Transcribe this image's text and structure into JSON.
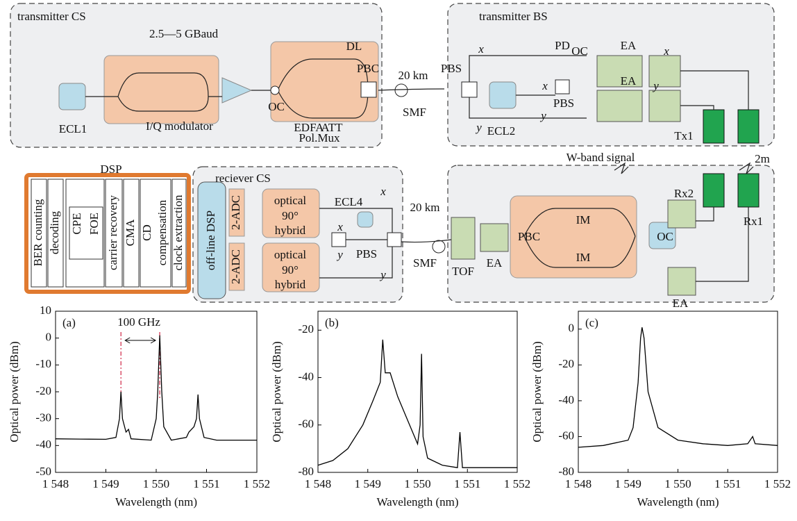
{
  "diagram": {
    "labels": [
      "transmitter CS",
      "2.5—5 GBaud",
      "ECL1",
      "I/Q modulator",
      "EDFA",
      "OC",
      "DL",
      "ATT",
      "PBC",
      "Pol.Mux",
      "20 km",
      "SMF",
      "PBS",
      "transmitter BS",
      "x",
      "y",
      "ECL2",
      "x",
      "PBS",
      "y",
      "OC",
      "PD",
      "EA",
      "EA",
      "x",
      "y",
      "Tx1",
      "W-band signal",
      "2m",
      "DSP",
      "BER counting",
      "decoding",
      "CPE",
      "FOE",
      "carrier recovery",
      "CMA",
      "CD",
      "compensation",
      "clock extraction",
      "reciever CS",
      "off-line DSP",
      "2-ADC",
      "2-ADC",
      "optical",
      "90°",
      "hybrid",
      "optical",
      "90°",
      "hybrid",
      "ECL4",
      "x",
      "x",
      "y",
      "PBS",
      "y",
      "20 km",
      "SMF",
      "TOF",
      "EA",
      "PBC",
      "IM",
      "IM",
      "OC",
      "Rx2",
      "Rx1",
      "EA"
    ]
  },
  "chart_data": [
    {
      "type": "line",
      "title": "(a)",
      "annotation": "100 GHz",
      "x_label": "Wavelength (nm)",
      "y_label": "Optical power (dBm)",
      "color": "#000000",
      "markers": {
        "x": [
          1549.3,
          1550.07
        ],
        "color": "#d9506a"
      },
      "x": [
        1548,
        1548.5,
        1549.0,
        1549.2,
        1549.27,
        1549.3,
        1549.33,
        1549.4,
        1549.45,
        1549.5,
        1549.9,
        1550.0,
        1550.03,
        1550.07,
        1550.11,
        1550.15,
        1550.3,
        1550.6,
        1550.65,
        1550.75,
        1550.8,
        1550.83,
        1550.86,
        1550.95,
        1551.2,
        1551.6,
        1552
      ],
      "values": [
        -37.5,
        -37.6,
        -37.7,
        -37,
        -30,
        -20,
        -30,
        -35,
        -34,
        -37.5,
        -38,
        -30,
        -20,
        1,
        -20,
        -33,
        -38,
        -37,
        -35,
        -33,
        -30,
        -21,
        -30,
        -37,
        -38,
        -38,
        -38
      ],
      "xlim": [
        1548,
        1552
      ],
      "xticks": [
        {
          "value": 1548,
          "label": "1 548"
        },
        {
          "value": 1549,
          "label": "1 549"
        },
        {
          "value": 1550,
          "label": "1 550"
        },
        {
          "value": 1551,
          "label": "1 551"
        },
        {
          "value": 1552,
          "label": "1 552"
        }
      ],
      "ylim": [
        -50,
        10
      ],
      "yticks": [
        -50,
        -40,
        -30,
        -20,
        -10,
        0,
        10
      ]
    },
    {
      "type": "line",
      "title": "(b)",
      "x_label": "Wavelength (nm)",
      "y_label": "Optical power (dBm)",
      "color": "#000000",
      "x": [
        1548,
        1548.3,
        1548.6,
        1548.9,
        1549.1,
        1549.25,
        1549.3,
        1549.35,
        1549.45,
        1549.6,
        1549.8,
        1550.0,
        1550.05,
        1550.08,
        1550.11,
        1550.2,
        1550.5,
        1550.8,
        1550.85,
        1550.9,
        1551.3,
        1552
      ],
      "values": [
        -77,
        -75,
        -70,
        -60,
        -50,
        -42,
        -24,
        -38,
        -38,
        -48,
        -58,
        -68,
        -60,
        -30,
        -65,
        -74,
        -77,
        -78,
        -63,
        -78,
        -78,
        -78
      ],
      "xlim": [
        1548,
        1552
      ],
      "xticks": [
        {
          "value": 1548,
          "label": "1 548"
        },
        {
          "value": 1549,
          "label": "1 549"
        },
        {
          "value": 1550,
          "label": "1 550"
        },
        {
          "value": 1551,
          "label": "1 551"
        },
        {
          "value": 1552,
          "label": "1 552"
        }
      ],
      "ylim": [
        -80,
        -12
      ],
      "yticks": [
        -80,
        -60,
        -40,
        -20
      ]
    },
    {
      "type": "line",
      "title": "(c)",
      "x_label": "Wavelength (nm)",
      "y_label": "Optical power (dBm)",
      "color": "#000000",
      "x": [
        1548,
        1548.5,
        1549.0,
        1549.1,
        1549.2,
        1549.25,
        1549.28,
        1549.32,
        1549.4,
        1549.6,
        1550.0,
        1550.5,
        1551.0,
        1551.4,
        1551.5,
        1551.55,
        1552
      ],
      "values": [
        -66,
        -65,
        -62,
        -55,
        -30,
        -5,
        1,
        -5,
        -35,
        -55,
        -62,
        -64,
        -65,
        -64,
        -60,
        -64,
        -65
      ],
      "xlim": [
        1548,
        1552
      ],
      "xticks": [
        {
          "value": 1548,
          "label": "1 548"
        },
        {
          "value": 1549,
          "label": "1 549"
        },
        {
          "value": 1550,
          "label": "1 550"
        },
        {
          "value": 1551,
          "label": "1 551"
        },
        {
          "value": 1552,
          "label": "1 552"
        }
      ],
      "ylim": [
        -80,
        10
      ],
      "yticks": [
        -80,
        -60,
        -40,
        -20,
        0
      ]
    }
  ]
}
